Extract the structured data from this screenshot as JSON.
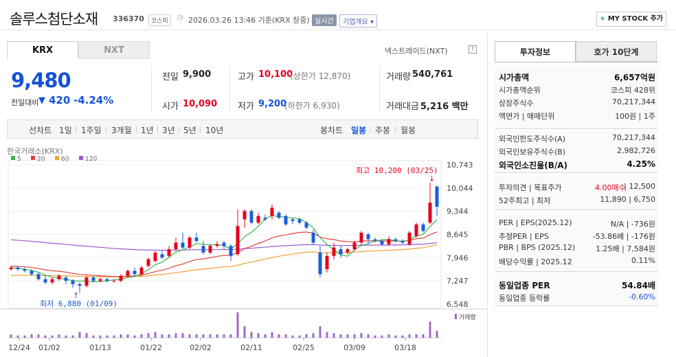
{
  "header": {
    "stock_name": "솔루스첨단소재",
    "code": "336370",
    "market_badge": "코스피",
    "datetime": "2026.03.26 13:46 기준(KRX 장중)",
    "realtime_badge": "실시간",
    "company_info_button": "기업개요",
    "my_stock_button": "MY STOCK 추가"
  },
  "market_tabs": [
    "KRX",
    "NXT"
  ],
  "nxt_link": "넥스트레이드(NXT)",
  "price": {
    "current": "9,480",
    "change_label": "전일대비",
    "change_value": "420",
    "change_pct": "-4.24%"
  },
  "quote": {
    "prev_label": "전일",
    "prev_value": "9,900",
    "open_label": "시가",
    "open_value": "10,090",
    "high_label": "고가",
    "high_value": "10,100",
    "high_sub": "(상한가 12,870)",
    "low_label": "저가",
    "low_value": "9,200",
    "low_sub": "(하한가 6,930)",
    "volume_label": "거래량",
    "volume_value": "540,761",
    "amount_label": "거래대금",
    "amount_value": "5,216 백만"
  },
  "toolbar": {
    "line_chart": "선차트",
    "ranges": [
      "1일",
      "1주일",
      "3개월",
      "1년",
      "3년",
      "5년",
      "10년"
    ],
    "candle_chart": "봉차트",
    "periods": [
      "일봉",
      "주봉",
      "월봉"
    ]
  },
  "chart_data": {
    "type": "candlestick",
    "source_label": "한국거래소(KRX)",
    "legend": [
      {
        "name": "5",
        "color": "#3bb54a"
      },
      {
        "name": "20",
        "color": "#e0413a"
      },
      {
        "name": "60",
        "color": "#f0a030"
      },
      {
        "name": "120",
        "color": "#9b59d0"
      }
    ],
    "y_ticks": [
      "10,743",
      "10,044",
      "9,344",
      "8,645",
      "7,946",
      "7,247",
      "6,548"
    ],
    "x_ticks": [
      "12/24",
      "01/02",
      "01/13",
      "01/22",
      "02/02",
      "02/11",
      "02/25",
      "03/09",
      "03/18"
    ],
    "high_annotation": "최고 10,200 (03/25)",
    "low_annotation": "최저 6,880 (01/09)",
    "volume_label": "거래량",
    "candles": [
      {
        "o": 7600,
        "c": 7650,
        "h": 7700,
        "l": 7550
      },
      {
        "o": 7650,
        "c": 7600,
        "h": 7700,
        "l": 7550
      },
      {
        "o": 7600,
        "c": 7550,
        "h": 7650,
        "l": 7500
      },
      {
        "o": 7550,
        "c": 7450,
        "h": 7600,
        "l": 7400
      },
      {
        "o": 7450,
        "c": 7300,
        "h": 7500,
        "l": 7250
      },
      {
        "o": 7300,
        "c": 7200,
        "h": 7400,
        "l": 7150
      },
      {
        "o": 7200,
        "c": 7300,
        "h": 7350,
        "l": 7150
      },
      {
        "o": 7300,
        "c": 7400,
        "h": 7450,
        "l": 7250
      },
      {
        "o": 7350,
        "c": 7250,
        "h": 7400,
        "l": 7150
      },
      {
        "o": 7250,
        "c": 7150,
        "h": 7300,
        "l": 7050
      },
      {
        "o": 7150,
        "c": 7100,
        "h": 7200,
        "l": 6880
      },
      {
        "o": 7100,
        "c": 7350,
        "h": 7400,
        "l": 7050
      },
      {
        "o": 7350,
        "c": 7250,
        "h": 7400,
        "l": 7200
      },
      {
        "o": 7250,
        "c": 7300,
        "h": 7350,
        "l": 7200
      },
      {
        "o": 7300,
        "c": 7250,
        "h": 7350,
        "l": 7200
      },
      {
        "o": 7250,
        "c": 7250,
        "h": 7300,
        "l": 7200
      },
      {
        "o": 7250,
        "c": 7400,
        "h": 7450,
        "l": 7200
      },
      {
        "o": 7400,
        "c": 7550,
        "h": 7600,
        "l": 7350
      },
      {
        "o": 7550,
        "c": 7450,
        "h": 7650,
        "l": 7400
      },
      {
        "o": 7450,
        "c": 7650,
        "h": 7700,
        "l": 7400
      },
      {
        "o": 7700,
        "c": 7900,
        "h": 7950,
        "l": 7650
      },
      {
        "o": 7850,
        "c": 8100,
        "h": 8150,
        "l": 7800
      },
      {
        "o": 8050,
        "c": 7950,
        "h": 8150,
        "l": 7900
      },
      {
        "o": 8000,
        "c": 8200,
        "h": 8300,
        "l": 7950
      },
      {
        "o": 8200,
        "c": 8400,
        "h": 8550,
        "l": 8150
      },
      {
        "o": 8400,
        "c": 8250,
        "h": 8700,
        "l": 8200
      },
      {
        "o": 8250,
        "c": 8550,
        "h": 8600,
        "l": 8200
      },
      {
        "o": 8550,
        "c": 8450,
        "h": 8700,
        "l": 8400
      },
      {
        "o": 8300,
        "c": 8100,
        "h": 8450,
        "l": 8050
      },
      {
        "o": 8100,
        "c": 8300,
        "h": 8350,
        "l": 8050
      },
      {
        "o": 8300,
        "c": 8350,
        "h": 8450,
        "l": 8250
      },
      {
        "o": 8400,
        "c": 8300,
        "h": 8450,
        "l": 8200
      },
      {
        "o": 8300,
        "c": 8000,
        "h": 8350,
        "l": 7850
      },
      {
        "o": 8050,
        "c": 8900,
        "h": 9400,
        "l": 8000
      },
      {
        "o": 9100,
        "c": 9350,
        "h": 9400,
        "l": 8850
      },
      {
        "o": 9350,
        "c": 9000,
        "h": 9400,
        "l": 8950
      },
      {
        "o": 9000,
        "c": 9200,
        "h": 9300,
        "l": 8950
      },
      {
        "o": 9150,
        "c": 9100,
        "h": 9250,
        "l": 9050
      },
      {
        "o": 9200,
        "c": 9450,
        "h": 9550,
        "l": 9100
      },
      {
        "o": 9300,
        "c": 9150,
        "h": 9350,
        "l": 9100
      },
      {
        "o": 9200,
        "c": 8950,
        "h": 9250,
        "l": 8900
      },
      {
        "o": 9100,
        "c": 9050,
        "h": 9150,
        "l": 8950
      },
      {
        "o": 9100,
        "c": 9000,
        "h": 9150,
        "l": 8950
      },
      {
        "o": 9000,
        "c": 8850,
        "h": 9050,
        "l": 8800
      },
      {
        "o": 8700,
        "c": 8400,
        "h": 8800,
        "l": 8350
      },
      {
        "o": 8100,
        "c": 7450,
        "h": 8300,
        "l": 7350
      },
      {
        "o": 7600,
        "c": 8000,
        "h": 8100,
        "l": 7500
      },
      {
        "o": 8000,
        "c": 8250,
        "h": 8400,
        "l": 7900
      },
      {
        "o": 8200,
        "c": 8050,
        "h": 8300,
        "l": 7950
      },
      {
        "o": 8100,
        "c": 8200,
        "h": 8250,
        "l": 8050
      },
      {
        "o": 8200,
        "c": 8400,
        "h": 8450,
        "l": 8150
      },
      {
        "o": 8400,
        "c": 8700,
        "h": 8750,
        "l": 8300
      },
      {
        "o": 8650,
        "c": 8500,
        "h": 8700,
        "l": 8350
      },
      {
        "o": 8500,
        "c": 8450,
        "h": 8550,
        "l": 8400
      },
      {
        "o": 8450,
        "c": 8350,
        "h": 8500,
        "l": 8300
      },
      {
        "o": 8350,
        "c": 8500,
        "h": 8600,
        "l": 8300
      },
      {
        "o": 8500,
        "c": 8450,
        "h": 8550,
        "l": 8400
      },
      {
        "o": 8450,
        "c": 8400,
        "h": 8500,
        "l": 8350
      },
      {
        "o": 8350,
        "c": 8700,
        "h": 8750,
        "l": 8300
      },
      {
        "o": 8600,
        "c": 8950,
        "h": 9000,
        "l": 8550
      },
      {
        "o": 8950,
        "c": 8750,
        "h": 9000,
        "l": 8700
      },
      {
        "o": 9000,
        "c": 9600,
        "h": 10200,
        "l": 8950
      },
      {
        "o": 10090,
        "c": 9480,
        "h": 10100,
        "l": 9200
      }
    ],
    "volumes": [
      3,
      2,
      2,
      3,
      3,
      2,
      2,
      3,
      2,
      2,
      5,
      4,
      2,
      2,
      2,
      2,
      3,
      3,
      2,
      3,
      4,
      5,
      3,
      3,
      4,
      4,
      3,
      3,
      3,
      3,
      3,
      3,
      3,
      22,
      10,
      5,
      4,
      3,
      5,
      3,
      3,
      2,
      2,
      3,
      4,
      10,
      5,
      4,
      3,
      3,
      3,
      4,
      3,
      2,
      2,
      3,
      2,
      2,
      3,
      3,
      3,
      14,
      6
    ]
  },
  "right_tabs": [
    "투자정보",
    "호가 10단계"
  ],
  "invest": {
    "s1": [
      {
        "label": "시가총액",
        "value": "6,657억원"
      },
      {
        "label": "시가총액순위",
        "value": "코스피 428위"
      },
      {
        "label": "상장주식수",
        "value": "70,217,344"
      },
      {
        "label": "액면가 | 매매단위",
        "value": "100원 | 1주"
      }
    ],
    "s2": [
      {
        "label": "외국인한도주식수(A)",
        "value": "70,217,344"
      },
      {
        "label": "외국인보유주식수(B)",
        "value": "2,982,726"
      },
      {
        "label": "외국인소진율(B/A)",
        "value": "4.25%"
      }
    ],
    "s3": [
      {
        "label": "투자의견 | 목표주가",
        "value_a": "4.00매수",
        "value_b": "12,500"
      },
      {
        "label": "52주최고 | 최저",
        "value": "11,890 | 6,750"
      }
    ],
    "s4": [
      {
        "label": "PER | EPS(2025.12)",
        "value": "N/A | -736원"
      },
      {
        "label": "추정PER | EPS",
        "value": "-53.86배 | -176원"
      },
      {
        "label": "PBR | BPS (2025.12)",
        "value": "1.25배 | 7,584원"
      },
      {
        "label": "배당수익률 | 2025.12",
        "value": "0.11%"
      }
    ],
    "s5": [
      {
        "label": "동일업종 PER",
        "value": "54.84배"
      },
      {
        "label": "동일업종 등락률",
        "value": "-0.60%"
      }
    ]
  }
}
